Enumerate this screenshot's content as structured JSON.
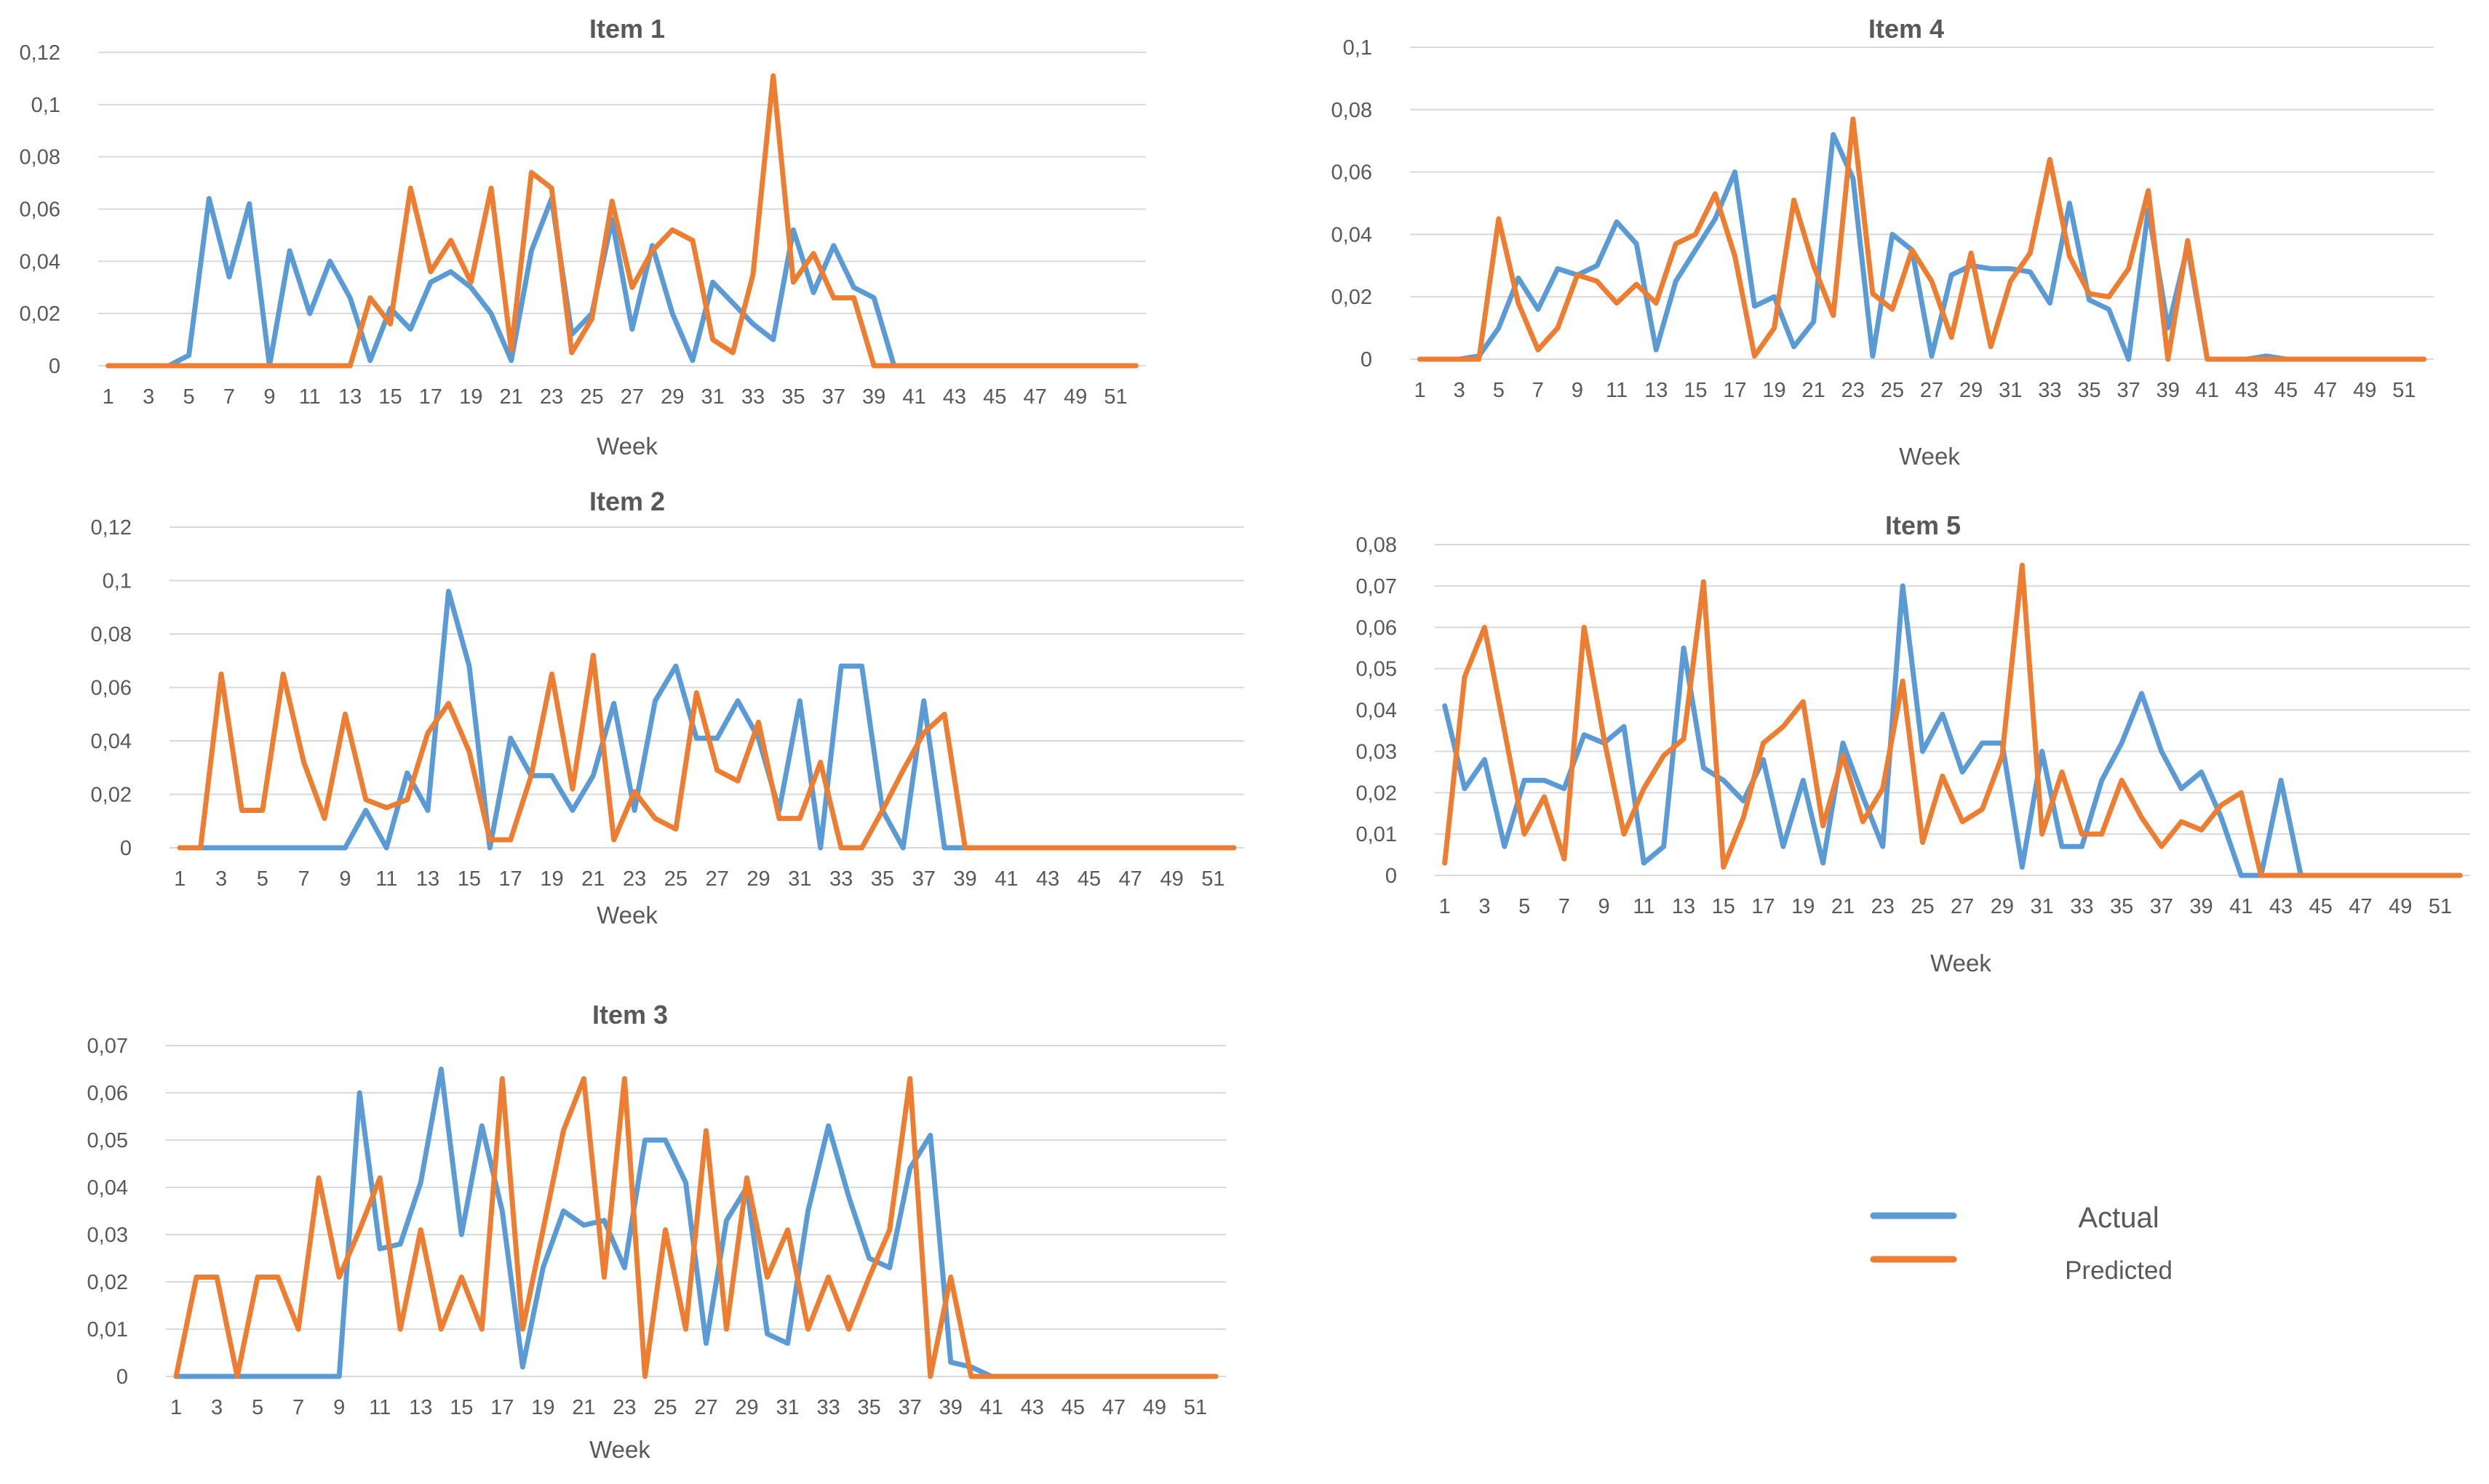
{
  "chart_data": [
    {
      "id": "item1",
      "type": "line",
      "title": "Item 1",
      "xlabel": "Week",
      "ylabel": "",
      "ylim": [
        0,
        0.12
      ],
      "y_ticks": [
        "0",
        "0,02",
        "0,04",
        "0,06",
        "0,08",
        "0,1",
        "0,12"
      ],
      "x_ticks": [
        "1",
        "3",
        "5",
        "7",
        "9",
        "11",
        "13",
        "15",
        "17",
        "19",
        "21",
        "23",
        "25",
        "27",
        "29",
        "31",
        "33",
        "35",
        "37",
        "39",
        "41",
        "43",
        "45",
        "47",
        "49",
        "51"
      ],
      "weeks": 52,
      "series": [
        {
          "name": "Actual",
          "values": [
            0,
            0,
            0,
            0,
            0.004,
            0.064,
            0.034,
            0.062,
            0,
            0.044,
            0.02,
            0.04,
            0.026,
            0.002,
            0.022,
            0.014,
            0.032,
            0.036,
            0.03,
            0.02,
            0.002,
            0.044,
            0.064,
            0.012,
            0.02,
            0.056,
            0.014,
            0.046,
            0.02,
            0.002,
            0.032,
            0.024,
            0.016,
            0.01,
            0.052,
            0.028,
            0.046,
            0.03,
            0.026,
            0,
            0,
            0,
            0,
            0,
            0,
            0,
            0,
            0,
            0,
            0,
            0,
            0
          ]
        },
        {
          "name": "Predicted",
          "values": [
            0,
            0,
            0,
            0,
            0,
            0,
            0,
            0,
            0,
            0,
            0,
            0,
            0,
            0.026,
            0.016,
            0.068,
            0.036,
            0.048,
            0.032,
            0.068,
            0.006,
            0.074,
            0.068,
            0.005,
            0.018,
            0.063,
            0.03,
            0.044,
            0.052,
            0.048,
            0.01,
            0.005,
            0.035,
            0.111,
            0.032,
            0.043,
            0.026,
            0.026,
            0,
            0,
            0,
            0,
            0,
            0,
            0,
            0,
            0,
            0,
            0,
            0,
            0,
            0
          ]
        }
      ]
    },
    {
      "id": "item2",
      "type": "line",
      "title": "Item 2",
      "xlabel": "Week",
      "ylabel": "",
      "ylim": [
        0,
        0.12
      ],
      "y_ticks": [
        "0",
        "0,02",
        "0,04",
        "0,06",
        "0,08",
        "0,1",
        "0,12"
      ],
      "x_ticks": [
        "1",
        "3",
        "5",
        "7",
        "9",
        "11",
        "13",
        "15",
        "17",
        "19",
        "21",
        "23",
        "25",
        "27",
        "29",
        "31",
        "33",
        "35",
        "37",
        "39",
        "41",
        "43",
        "45",
        "47",
        "49",
        "51"
      ],
      "weeks": 52,
      "series": [
        {
          "name": "Actual",
          "values": [
            0,
            0,
            0,
            0,
            0,
            0,
            0,
            0,
            0,
            0.014,
            0,
            0.028,
            0.014,
            0.096,
            0.068,
            0,
            0.041,
            0.027,
            0.027,
            0.014,
            0.027,
            0.054,
            0.014,
            0.055,
            0.068,
            0.041,
            0.041,
            0.055,
            0.041,
            0.014,
            0.055,
            0,
            0.068,
            0.068,
            0.014,
            0,
            0.055,
            0,
            0,
            0,
            0,
            0,
            0,
            0,
            0,
            0,
            0,
            0,
            0,
            0,
            0,
            0
          ]
        },
        {
          "name": "Predicted",
          "values": [
            0,
            0,
            0.065,
            0.014,
            0.014,
            0.065,
            0.032,
            0.011,
            0.05,
            0.018,
            0.015,
            0.018,
            0.043,
            0.054,
            0.036,
            0.003,
            0.003,
            0.027,
            0.065,
            0.022,
            0.072,
            0.003,
            0.021,
            0.011,
            0.007,
            0.058,
            0.029,
            0.025,
            0.047,
            0.011,
            0.011,
            0.032,
            0,
            0,
            0.014,
            0.029,
            0.043,
            0.05,
            0,
            0,
            0,
            0,
            0,
            0,
            0,
            0,
            0,
            0,
            0,
            0,
            0,
            0
          ]
        }
      ]
    },
    {
      "id": "item3",
      "type": "line",
      "title": "Item 3",
      "xlabel": "Week",
      "ylabel": "",
      "ylim": [
        0,
        0.07
      ],
      "y_ticks": [
        "0",
        "0,01",
        "0,02",
        "0,03",
        "0,04",
        "0,05",
        "0,06",
        "0,07"
      ],
      "x_ticks": [
        "1",
        "3",
        "5",
        "7",
        "9",
        "11",
        "13",
        "15",
        "17",
        "19",
        "21",
        "23",
        "25",
        "27",
        "29",
        "31",
        "33",
        "35",
        "37",
        "39",
        "41",
        "43",
        "45",
        "47",
        "49",
        "51"
      ],
      "weeks": 52,
      "series": [
        {
          "name": "Actual",
          "values": [
            0,
            0,
            0,
            0,
            0,
            0,
            0,
            0,
            0,
            0.06,
            0.027,
            0.028,
            0.041,
            0.065,
            0.03,
            0.053,
            0.035,
            0.002,
            0.023,
            0.035,
            0.032,
            0.033,
            0.023,
            0.05,
            0.05,
            0.041,
            0.007,
            0.033,
            0.04,
            0.009,
            0.007,
            0.035,
            0.053,
            0.038,
            0.025,
            0.023,
            0.044,
            0.051,
            0.003,
            0.002,
            0,
            0,
            0,
            0,
            0,
            0,
            0,
            0,
            0,
            0,
            0,
            0
          ]
        },
        {
          "name": "Predicted",
          "values": [
            0,
            0.021,
            0.021,
            0,
            0.021,
            0.021,
            0.01,
            0.042,
            0.021,
            0.031,
            0.042,
            0.01,
            0.031,
            0.01,
            0.021,
            0.01,
            0.063,
            0.01,
            0.031,
            0.052,
            0.063,
            0.021,
            0.063,
            0,
            0.031,
            0.01,
            0.052,
            0.01,
            0.042,
            0.021,
            0.031,
            0.01,
            0.021,
            0.01,
            0.021,
            0.031,
            0.063,
            0,
            0.021,
            0,
            0,
            0,
            0,
            0,
            0,
            0,
            0,
            0,
            0,
            0,
            0,
            0
          ]
        }
      ]
    },
    {
      "id": "item4",
      "type": "line",
      "title": "Item 4",
      "xlabel": "Week",
      "ylabel": "",
      "ylim": [
        0,
        0.1
      ],
      "y_ticks": [
        "0",
        "0,02",
        "0,04",
        "0,06",
        "0,08",
        "0,1"
      ],
      "x_ticks": [
        "1",
        "3",
        "5",
        "7",
        "9",
        "11",
        "13",
        "15",
        "17",
        "19",
        "21",
        "23",
        "25",
        "27",
        "29",
        "31",
        "33",
        "35",
        "37",
        "39",
        "41",
        "43",
        "45",
        "47",
        "49",
        "51"
      ],
      "weeks": 52,
      "series": [
        {
          "name": "Actual",
          "values": [
            0,
            0,
            0,
            0.001,
            0.01,
            0.026,
            0.016,
            0.029,
            0.027,
            0.03,
            0.044,
            0.037,
            0.003,
            0.025,
            0.035,
            0.045,
            0.06,
            0.017,
            0.02,
            0.004,
            0.012,
            0.072,
            0.058,
            0.001,
            0.04,
            0.035,
            0.001,
            0.027,
            0.03,
            0.029,
            0.029,
            0.028,
            0.018,
            0.05,
            0.019,
            0.016,
            0,
            0.048,
            0.01,
            0.036,
            0,
            0,
            0,
            0.001,
            0,
            0,
            0,
            0,
            0,
            0,
            0,
            0
          ]
        },
        {
          "name": "Predicted",
          "values": [
            0,
            0,
            0,
            0,
            0.045,
            0.018,
            0.003,
            0.01,
            0.027,
            0.025,
            0.018,
            0.024,
            0.018,
            0.037,
            0.04,
            0.053,
            0.033,
            0.001,
            0.01,
            0.051,
            0.03,
            0.014,
            0.077,
            0.021,
            0.016,
            0.035,
            0.025,
            0.007,
            0.034,
            0.004,
            0.025,
            0.034,
            0.064,
            0.033,
            0.021,
            0.02,
            0.029,
            0.054,
            0,
            0.038,
            0,
            0,
            0,
            0,
            0,
            0,
            0,
            0,
            0,
            0,
            0,
            0
          ]
        }
      ]
    },
    {
      "id": "item5",
      "type": "line",
      "title": "Item 5",
      "xlabel": "Week",
      "ylabel": "",
      "ylim": [
        0,
        0.08
      ],
      "y_ticks": [
        "0",
        "0,01",
        "0,02",
        "0,03",
        "0,04",
        "0,05",
        "0,06",
        "0,07",
        "0,08"
      ],
      "x_ticks": [
        "1",
        "3",
        "5",
        "7",
        "9",
        "11",
        "13",
        "15",
        "17",
        "19",
        "21",
        "23",
        "25",
        "27",
        "29",
        "31",
        "33",
        "35",
        "37",
        "39",
        "41",
        "43",
        "45",
        "47",
        "49",
        "51"
      ],
      "weeks": 52,
      "series": [
        {
          "name": "Actual",
          "values": [
            0.041,
            0.021,
            0.028,
            0.007,
            0.023,
            0.023,
            0.021,
            0.034,
            0.032,
            0.036,
            0.003,
            0.007,
            0.055,
            0.026,
            0.023,
            0.018,
            0.028,
            0.007,
            0.023,
            0.003,
            0.032,
            0.019,
            0.007,
            0.07,
            0.03,
            0.039,
            0.025,
            0.032,
            0.032,
            0.002,
            0.03,
            0.007,
            0.007,
            0.023,
            0.032,
            0.044,
            0.03,
            0.021,
            0.025,
            0.014,
            0,
            0,
            0.023,
            0,
            0,
            0,
            0,
            0,
            0,
            0,
            0,
            0
          ]
        },
        {
          "name": "Predicted",
          "values": [
            0.003,
            0.048,
            0.06,
            0.035,
            0.01,
            0.019,
            0.004,
            0.06,
            0.033,
            0.01,
            0.021,
            0.029,
            0.033,
            0.071,
            0.002,
            0.014,
            0.032,
            0.036,
            0.042,
            0.012,
            0.029,
            0.013,
            0.021,
            0.047,
            0.008,
            0.024,
            0.013,
            0.016,
            0.029,
            0.075,
            0.01,
            0.025,
            0.01,
            0.01,
            0.023,
            0.014,
            0.007,
            0.013,
            0.011,
            0.017,
            0.02,
            0,
            0,
            0,
            0,
            0,
            0,
            0,
            0,
            0,
            0,
            0
          ]
        }
      ]
    }
  ],
  "legend": {
    "entries": [
      {
        "name": "Actual",
        "color": "#5b9bd5"
      },
      {
        "name": "Predicted",
        "color": "#ed7d31"
      }
    ]
  }
}
